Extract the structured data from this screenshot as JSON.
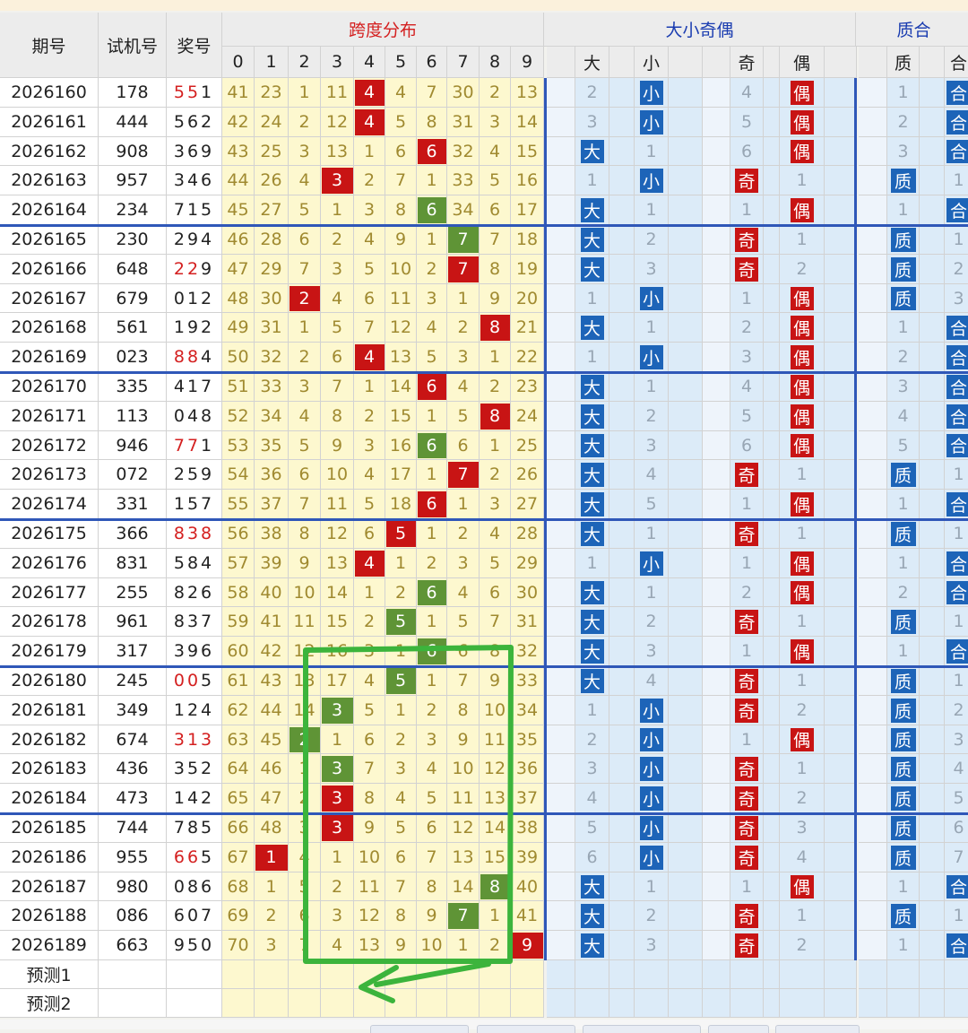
{
  "headers": {
    "qihao": "期号",
    "shiji": "试机号",
    "jianghao": "奖号",
    "kuadu_title": "跨度分布",
    "dxjo_title": "大小奇偶",
    "zhihe_title": "质合",
    "kuadu_digits": [
      "0",
      "1",
      "2",
      "3",
      "4",
      "5",
      "6",
      "7",
      "8",
      "9"
    ],
    "dxjo_cols": [
      "大",
      "小",
      "奇",
      "偶"
    ],
    "zhihe_cols": [
      "质",
      "合"
    ]
  },
  "rows": [
    {
      "period": "2026160",
      "test": "178",
      "win": "551",
      "red": [
        1,
        1,
        0
      ],
      "k": [
        41,
        23,
        1,
        11,
        "4",
        4,
        7,
        30,
        2,
        13
      ],
      "kh": 4,
      "kc": "red",
      "big": false,
      "bv": 2,
      "odd": false,
      "ov": 4,
      "prime": false,
      "pv": 1
    },
    {
      "period": "2026161",
      "test": "444",
      "win": "562",
      "red": [
        0,
        0,
        0
      ],
      "k": [
        42,
        24,
        2,
        12,
        "4",
        5,
        8,
        31,
        3,
        14
      ],
      "kh": 4,
      "kc": "red",
      "big": false,
      "bv": 3,
      "odd": false,
      "ov": 5,
      "prime": false,
      "pv": 2
    },
    {
      "period": "2026162",
      "test": "908",
      "win": "369",
      "red": [
        0,
        0,
        0
      ],
      "k": [
        43,
        25,
        3,
        13,
        1,
        6,
        "6",
        32,
        4,
        15
      ],
      "kh": 6,
      "kc": "red",
      "big": true,
      "bv": 1,
      "odd": false,
      "ov": 6,
      "prime": false,
      "pv": 3
    },
    {
      "period": "2026163",
      "test": "957",
      "win": "346",
      "red": [
        0,
        0,
        0
      ],
      "k": [
        44,
        26,
        4,
        "3",
        2,
        7,
        1,
        33,
        5,
        16
      ],
      "kh": 3,
      "kc": "red",
      "big": false,
      "bv": 1,
      "odd": true,
      "ov": 1,
      "prime": true,
      "pv": 1
    },
    {
      "period": "2026164",
      "test": "234",
      "win": "715",
      "red": [
        0,
        0,
        0
      ],
      "k": [
        45,
        27,
        5,
        1,
        3,
        8,
        "6",
        34,
        6,
        17
      ],
      "kh": 6,
      "kc": "green",
      "big": true,
      "bv": 1,
      "odd": false,
      "ov": 1,
      "prime": false,
      "pv": 1
    },
    {
      "period": "2026165",
      "test": "230",
      "win": "294",
      "red": [
        0,
        0,
        0
      ],
      "k": [
        46,
        28,
        6,
        2,
        4,
        9,
        1,
        "7",
        7,
        18
      ],
      "kh": 7,
      "kc": "green",
      "big": true,
      "bv": 2,
      "odd": true,
      "ov": 1,
      "prime": true,
      "pv": 1
    },
    {
      "period": "2026166",
      "test": "648",
      "win": "229",
      "red": [
        1,
        1,
        0
      ],
      "k": [
        47,
        29,
        7,
        3,
        5,
        10,
        2,
        "7",
        8,
        19
      ],
      "kh": 7,
      "kc": "red",
      "big": true,
      "bv": 3,
      "odd": true,
      "ov": 2,
      "prime": true,
      "pv": 2
    },
    {
      "period": "2026167",
      "test": "679",
      "win": "012",
      "red": [
        0,
        0,
        0
      ],
      "k": [
        48,
        30,
        "2",
        4,
        6,
        11,
        3,
        1,
        9,
        20
      ],
      "kh": 2,
      "kc": "red",
      "big": false,
      "bv": 1,
      "odd": false,
      "ov": 1,
      "prime": true,
      "pv": 3
    },
    {
      "period": "2026168",
      "test": "561",
      "win": "192",
      "red": [
        0,
        0,
        0
      ],
      "k": [
        49,
        31,
        1,
        5,
        7,
        12,
        4,
        2,
        "8",
        21
      ],
      "kh": 8,
      "kc": "red",
      "big": true,
      "bv": 1,
      "odd": false,
      "ov": 2,
      "prime": false,
      "pv": 1
    },
    {
      "period": "2026169",
      "test": "023",
      "win": "884",
      "red": [
        1,
        1,
        0
      ],
      "k": [
        50,
        32,
        2,
        6,
        "4",
        13,
        5,
        3,
        1,
        22
      ],
      "kh": 4,
      "kc": "red",
      "big": false,
      "bv": 1,
      "odd": false,
      "ov": 3,
      "prime": false,
      "pv": 2
    },
    {
      "period": "2026170",
      "test": "335",
      "win": "417",
      "red": [
        0,
        0,
        0
      ],
      "k": [
        51,
        33,
        3,
        7,
        1,
        14,
        "6",
        4,
        2,
        23
      ],
      "kh": 6,
      "kc": "red",
      "big": true,
      "bv": 1,
      "odd": false,
      "ov": 4,
      "prime": false,
      "pv": 3
    },
    {
      "period": "2026171",
      "test": "113",
      "win": "048",
      "red": [
        0,
        0,
        0
      ],
      "k": [
        52,
        34,
        4,
        8,
        2,
        15,
        1,
        5,
        "8",
        24
      ],
      "kh": 8,
      "kc": "red",
      "big": true,
      "bv": 2,
      "odd": false,
      "ov": 5,
      "prime": false,
      "pv": 4
    },
    {
      "period": "2026172",
      "test": "946",
      "win": "771",
      "red": [
        1,
        1,
        0
      ],
      "k": [
        53,
        35,
        5,
        9,
        3,
        16,
        "6",
        6,
        1,
        25
      ],
      "kh": 6,
      "kc": "green",
      "big": true,
      "bv": 3,
      "odd": false,
      "ov": 6,
      "prime": false,
      "pv": 5
    },
    {
      "period": "2026173",
      "test": "072",
      "win": "259",
      "red": [
        0,
        0,
        0
      ],
      "k": [
        54,
        36,
        6,
        10,
        4,
        17,
        1,
        "7",
        2,
        26
      ],
      "kh": 7,
      "kc": "red",
      "big": true,
      "bv": 4,
      "odd": true,
      "ov": 1,
      "prime": true,
      "pv": 1
    },
    {
      "period": "2026174",
      "test": "331",
      "win": "157",
      "red": [
        0,
        0,
        0
      ],
      "k": [
        55,
        37,
        7,
        11,
        5,
        18,
        "6",
        1,
        3,
        27
      ],
      "kh": 6,
      "kc": "red",
      "big": true,
      "bv": 5,
      "odd": false,
      "ov": 1,
      "prime": false,
      "pv": 1
    },
    {
      "period": "2026175",
      "test": "366",
      "win": "838",
      "red": [
        1,
        1,
        1
      ],
      "k": [
        56,
        38,
        8,
        12,
        6,
        "5",
        1,
        2,
        4,
        28
      ],
      "kh": 5,
      "kc": "red",
      "big": true,
      "bv": 1,
      "odd": true,
      "ov": 1,
      "prime": true,
      "pv": 1
    },
    {
      "period": "2026176",
      "test": "831",
      "win": "584",
      "red": [
        0,
        0,
        0
      ],
      "k": [
        57,
        39,
        9,
        13,
        "4",
        1,
        2,
        3,
        5,
        29
      ],
      "kh": 4,
      "kc": "red",
      "big": false,
      "bv": 1,
      "odd": false,
      "ov": 1,
      "prime": false,
      "pv": 1
    },
    {
      "period": "2026177",
      "test": "255",
      "win": "826",
      "red": [
        0,
        0,
        0
      ],
      "k": [
        58,
        40,
        10,
        14,
        1,
        2,
        "6",
        4,
        6,
        30
      ],
      "kh": 6,
      "kc": "green",
      "big": true,
      "bv": 1,
      "odd": false,
      "ov": 2,
      "prime": false,
      "pv": 2
    },
    {
      "period": "2026178",
      "test": "961",
      "win": "837",
      "red": [
        0,
        0,
        0
      ],
      "k": [
        59,
        41,
        11,
        15,
        2,
        "5",
        1,
        5,
        7,
        31
      ],
      "kh": 5,
      "kc": "green",
      "big": true,
      "bv": 2,
      "odd": true,
      "ov": 1,
      "prime": true,
      "pv": 1
    },
    {
      "period": "2026179",
      "test": "317",
      "win": "396",
      "red": [
        0,
        0,
        0
      ],
      "k": [
        60,
        42,
        12,
        16,
        3,
        1,
        "6",
        6,
        8,
        32
      ],
      "kh": 6,
      "kc": "green",
      "big": true,
      "bv": 3,
      "odd": false,
      "ov": 1,
      "prime": false,
      "pv": 1
    },
    {
      "period": "2026180",
      "test": "245",
      "win": "005",
      "red": [
        1,
        1,
        0
      ],
      "k": [
        61,
        43,
        13,
        17,
        4,
        "5",
        1,
        7,
        9,
        33
      ],
      "kh": 5,
      "kc": "green",
      "big": true,
      "bv": 4,
      "odd": true,
      "ov": 1,
      "prime": true,
      "pv": 1
    },
    {
      "period": "2026181",
      "test": "349",
      "win": "124",
      "red": [
        0,
        0,
        0
      ],
      "k": [
        62,
        44,
        14,
        "3",
        5,
        1,
        2,
        8,
        10,
        34
      ],
      "kh": 3,
      "kc": "green",
      "big": false,
      "bv": 1,
      "odd": true,
      "ov": 2,
      "prime": true,
      "pv": 2
    },
    {
      "period": "2026182",
      "test": "674",
      "win": "313",
      "red": [
        1,
        1,
        1
      ],
      "k": [
        63,
        45,
        "2",
        1,
        6,
        2,
        3,
        9,
        11,
        35
      ],
      "kh": 2,
      "kc": "green",
      "big": false,
      "bv": 2,
      "odd": false,
      "ov": 1,
      "prime": true,
      "pv": 3
    },
    {
      "period": "2026183",
      "test": "436",
      "win": "352",
      "red": [
        0,
        0,
        0
      ],
      "k": [
        64,
        46,
        1,
        "3",
        7,
        3,
        4,
        10,
        12,
        36
      ],
      "kh": 3,
      "kc": "green",
      "big": false,
      "bv": 3,
      "odd": true,
      "ov": 1,
      "prime": true,
      "pv": 4
    },
    {
      "period": "2026184",
      "test": "473",
      "win": "142",
      "red": [
        0,
        0,
        0
      ],
      "k": [
        65,
        47,
        2,
        "3",
        8,
        4,
        5,
        11,
        13,
        37
      ],
      "kh": 3,
      "kc": "red",
      "big": false,
      "bv": 4,
      "odd": true,
      "ov": 2,
      "prime": true,
      "pv": 5
    },
    {
      "period": "2026185",
      "test": "744",
      "win": "785",
      "red": [
        0,
        0,
        0
      ],
      "k": [
        66,
        48,
        3,
        "3",
        9,
        5,
        6,
        12,
        14,
        38
      ],
      "kh": 3,
      "kc": "red",
      "big": false,
      "bv": 5,
      "odd": true,
      "ov": 3,
      "prime": true,
      "pv": 6
    },
    {
      "period": "2026186",
      "test": "955",
      "win": "665",
      "red": [
        1,
        1,
        0
      ],
      "k": [
        67,
        "1",
        4,
        1,
        10,
        6,
        7,
        13,
        15,
        39
      ],
      "kh": 1,
      "kc": "red",
      "big": false,
      "bv": 6,
      "odd": true,
      "ov": 4,
      "prime": true,
      "pv": 7
    },
    {
      "period": "2026187",
      "test": "980",
      "win": "086",
      "red": [
        0,
        0,
        0
      ],
      "k": [
        68,
        1,
        5,
        2,
        11,
        7,
        8,
        14,
        "8",
        40
      ],
      "kh": 8,
      "kc": "green",
      "big": true,
      "bv": 1,
      "odd": false,
      "ov": 1,
      "prime": false,
      "pv": 1
    },
    {
      "period": "2026188",
      "test": "086",
      "win": "607",
      "red": [
        0,
        0,
        0
      ],
      "k": [
        69,
        2,
        6,
        3,
        12,
        8,
        9,
        "7",
        1,
        41
      ],
      "kh": 7,
      "kc": "green",
      "big": true,
      "bv": 2,
      "odd": true,
      "ov": 1,
      "prime": true,
      "pv": 1
    },
    {
      "period": "2026189",
      "test": "663",
      "win": "950",
      "red": [
        0,
        0,
        0
      ],
      "k": [
        70,
        3,
        7,
        4,
        13,
        9,
        10,
        1,
        2,
        "9"
      ],
      "kh": 9,
      "kc": "red",
      "big": true,
      "bv": 3,
      "odd": true,
      "ov": 2,
      "prime": false,
      "pv": 1
    }
  ],
  "predict_rows": [
    "预测1",
    "预测2"
  ],
  "colors": {
    "hit_red": "#c81414",
    "hit_green": "#5f9436",
    "hit_blue": "#1d64b8",
    "annotation_green": "#3cb43c",
    "section_line": "#2f57b8"
  }
}
